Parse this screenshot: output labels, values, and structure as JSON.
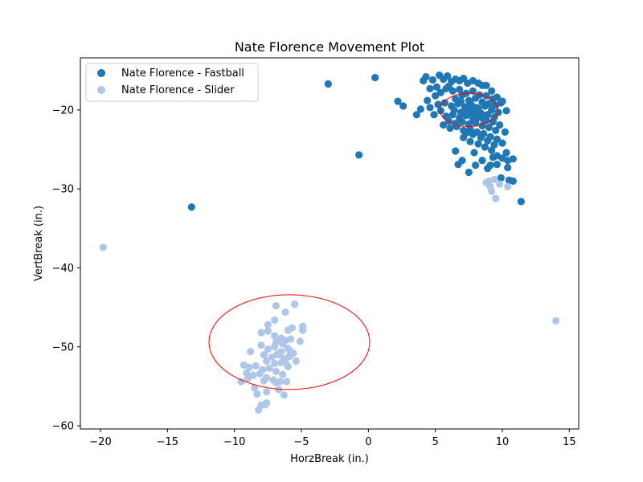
{
  "chart_data": {
    "type": "scatter",
    "title": "Nate Florence Movement Plot",
    "xlabel": "HorzBreak (in.)",
    "ylabel": "VertBreak (in.)",
    "xlim": [
      -21.5,
      15.7
    ],
    "ylim": [
      -60.4,
      -13.4
    ],
    "xticks": [
      -20,
      -15,
      -10,
      -5,
      0,
      5,
      10,
      15
    ],
    "yticks": [
      -60,
      -50,
      -40,
      -30,
      -20
    ],
    "xtick_labels": [
      "−20",
      "−15",
      "−10",
      "−5",
      "0",
      "5",
      "10",
      "15"
    ],
    "ytick_labels": [
      "−60",
      "−50",
      "−40",
      "−30",
      "−20"
    ],
    "grid": false,
    "legend_position": "top-left",
    "series": [
      {
        "name": "Nate Florence - Fastball",
        "color": "#1f77b4",
        "points": [
          [
            -13.2,
            -32.3
          ],
          [
            -3.0,
            -16.7
          ],
          [
            0.5,
            -15.9
          ],
          [
            -0.7,
            -25.7
          ],
          [
            11.4,
            -31.6
          ],
          [
            2.2,
            -18.9
          ],
          [
            2.6,
            -19.5
          ],
          [
            3.6,
            -20.6
          ],
          [
            3.9,
            -19.9
          ],
          [
            4.1,
            -16.3
          ],
          [
            4.3,
            -15.8
          ],
          [
            4.6,
            -19.7
          ],
          [
            4.9,
            -20.6
          ],
          [
            5.3,
            -15.6
          ],
          [
            5.4,
            -20.1
          ],
          [
            5.6,
            -16.1
          ],
          [
            5.9,
            -15.7
          ],
          [
            6.2,
            -16.4
          ],
          [
            6.5,
            -16.1
          ],
          [
            6.8,
            -16.3
          ],
          [
            7.1,
            -16.0
          ],
          [
            7.4,
            -16.6
          ],
          [
            7.8,
            -16.3
          ],
          [
            8.2,
            -16.6
          ],
          [
            8.5,
            -16.9
          ],
          [
            8.8,
            -16.9
          ],
          [
            9.2,
            -17.6
          ],
          [
            9.6,
            -18.4
          ],
          [
            10.0,
            -18.9
          ],
          [
            10.3,
            -20.1
          ],
          [
            5.0,
            -18.2
          ],
          [
            5.4,
            -17.8
          ],
          [
            5.8,
            -17.3
          ],
          [
            6.3,
            -17.6
          ],
          [
            6.8,
            -17.4
          ],
          [
            7.3,
            -17.9
          ],
          [
            7.8,
            -17.6
          ],
          [
            8.3,
            -18.1
          ],
          [
            8.8,
            -18.2
          ],
          [
            9.3,
            -18.6
          ],
          [
            5.2,
            -19.3
          ],
          [
            5.7,
            -19.1
          ],
          [
            6.2,
            -19.5
          ],
          [
            6.7,
            -19.2
          ],
          [
            7.2,
            -19.6
          ],
          [
            7.7,
            -19.4
          ],
          [
            8.2,
            -19.8
          ],
          [
            8.7,
            -19.5
          ],
          [
            9.2,
            -20.0
          ],
          [
            9.7,
            -20.3
          ],
          [
            5.8,
            -20.8
          ],
          [
            6.3,
            -20.6
          ],
          [
            6.8,
            -21.0
          ],
          [
            7.3,
            -20.7
          ],
          [
            7.8,
            -21.1
          ],
          [
            8.3,
            -20.9
          ],
          [
            8.8,
            -21.3
          ],
          [
            9.3,
            -21.5
          ],
          [
            9.8,
            -21.9
          ],
          [
            10.2,
            -22.8
          ],
          [
            5.6,
            -21.9
          ],
          [
            6.1,
            -22.3
          ],
          [
            6.6,
            -22.1
          ],
          [
            7.1,
            -22.6
          ],
          [
            7.6,
            -22.4
          ],
          [
            8.1,
            -22.8
          ],
          [
            8.6,
            -23.0
          ],
          [
            9.1,
            -23.4
          ],
          [
            9.6,
            -23.7
          ],
          [
            10.0,
            -24.2
          ],
          [
            7.1,
            -23.5
          ],
          [
            7.6,
            -24.0
          ],
          [
            8.2,
            -24.3
          ],
          [
            8.7,
            -24.7
          ],
          [
            9.2,
            -25.1
          ],
          [
            9.6,
            -25.8
          ],
          [
            10.0,
            -26.1
          ],
          [
            10.4,
            -26.4
          ],
          [
            10.8,
            -26.2
          ],
          [
            10.3,
            -25.4
          ],
          [
            6.5,
            -25.2
          ],
          [
            7.0,
            -26.4
          ],
          [
            6.7,
            -26.9
          ],
          [
            7.5,
            -27.9
          ],
          [
            8.0,
            -27.0
          ],
          [
            7.9,
            -25.4
          ],
          [
            8.9,
            -27.4
          ],
          [
            9.1,
            -27.0
          ],
          [
            9.6,
            -26.9
          ],
          [
            9.9,
            -28.6
          ],
          [
            10.4,
            -27.3
          ],
          [
            10.5,
            -28.9
          ],
          [
            10.8,
            -29.0
          ],
          [
            8.5,
            -26.4
          ],
          [
            9.3,
            -26.0
          ],
          [
            6.0,
            -17.0
          ],
          [
            6.5,
            -18.6
          ],
          [
            7.0,
            -18.1
          ],
          [
            7.5,
            -18.8
          ],
          [
            8.0,
            -18.5
          ],
          [
            8.5,
            -19.0
          ],
          [
            9.0,
            -19.2
          ],
          [
            9.5,
            -19.4
          ],
          [
            6.4,
            -20.0
          ],
          [
            6.9,
            -20.3
          ],
          [
            7.4,
            -19.9
          ],
          [
            7.9,
            -20.2
          ],
          [
            8.4,
            -20.4
          ],
          [
            8.9,
            -20.6
          ],
          [
            9.4,
            -20.9
          ],
          [
            6.0,
            -21.4
          ],
          [
            6.5,
            -21.7
          ],
          [
            7.0,
            -21.5
          ],
          [
            7.5,
            -21.8
          ],
          [
            8.0,
            -21.6
          ],
          [
            8.5,
            -22.0
          ],
          [
            9.0,
            -22.2
          ],
          [
            9.5,
            -22.6
          ],
          [
            7.3,
            -22.9
          ],
          [
            7.8,
            -23.1
          ],
          [
            8.4,
            -23.5
          ],
          [
            8.9,
            -23.9
          ],
          [
            9.4,
            -24.4
          ],
          [
            6.9,
            -18.9
          ],
          [
            7.6,
            -19.1
          ],
          [
            8.1,
            -19.7
          ],
          [
            7.1,
            -20.2
          ],
          [
            7.6,
            -20.5
          ],
          [
            8.1,
            -21.0
          ],
          [
            8.6,
            -21.2
          ],
          [
            4.6,
            -17.3
          ],
          [
            4.8,
            -16.2
          ],
          [
            5.1,
            -17.1
          ],
          [
            4.4,
            -18.8
          ],
          [
            9.9,
            -19.1
          ]
        ]
      },
      {
        "name": "Nate Florence - Slider",
        "color": "#aec7e8",
        "points": [
          [
            -19.8,
            -37.4
          ],
          [
            14.0,
            -46.7
          ],
          [
            9.0,
            -29.0
          ],
          [
            9.4,
            -28.8
          ],
          [
            9.2,
            -30.3
          ],
          [
            9.5,
            -31.2
          ],
          [
            10.4,
            -29.7
          ],
          [
            8.8,
            -29.2
          ],
          [
            9.8,
            -29.4
          ],
          [
            9.1,
            -29.7
          ],
          [
            -6.9,
            -44.8
          ],
          [
            -5.5,
            -44.6
          ],
          [
            -6.2,
            -45.6
          ],
          [
            -7.0,
            -46.6
          ],
          [
            -7.5,
            -47.2
          ],
          [
            -6.0,
            -47.9
          ],
          [
            -5.7,
            -47.6
          ],
          [
            -4.9,
            -47.4
          ],
          [
            -4.9,
            -47.9
          ],
          [
            -8.0,
            -48.2
          ],
          [
            -7.5,
            -48.0
          ],
          [
            -7.0,
            -48.6
          ],
          [
            -6.5,
            -48.9
          ],
          [
            -6.2,
            -49.2
          ],
          [
            -5.8,
            -49.0
          ],
          [
            -5.1,
            -49.3
          ],
          [
            -8.0,
            -49.8
          ],
          [
            -7.5,
            -50.3
          ],
          [
            -7.0,
            -50.0
          ],
          [
            -6.5,
            -50.6
          ],
          [
            -6.0,
            -50.2
          ],
          [
            -5.6,
            -50.8
          ],
          [
            -8.8,
            -50.6
          ],
          [
            -7.8,
            -51.0
          ],
          [
            -7.2,
            -51.3
          ],
          [
            -6.7,
            -51.0
          ],
          [
            -6.3,
            -51.5
          ],
          [
            -5.9,
            -51.2
          ],
          [
            -5.4,
            -51.8
          ],
          [
            -7.6,
            -51.8
          ],
          [
            -7.0,
            -52.1
          ],
          [
            -6.5,
            -52.0
          ],
          [
            -6.0,
            -52.5
          ],
          [
            -9.3,
            -52.3
          ],
          [
            -8.9,
            -52.6
          ],
          [
            -8.4,
            -52.4
          ],
          [
            -7.9,
            -52.9
          ],
          [
            -7.4,
            -52.7
          ],
          [
            -6.9,
            -53.1
          ],
          [
            -6.4,
            -53.5
          ],
          [
            -9.1,
            -53.3
          ],
          [
            -8.6,
            -53.6
          ],
          [
            -8.1,
            -53.4
          ],
          [
            -7.6,
            -53.9
          ],
          [
            -7.1,
            -54.2
          ],
          [
            -6.6,
            -54.4
          ],
          [
            -9.5,
            -54.4
          ],
          [
            -9.0,
            -54.0
          ],
          [
            -8.5,
            -55.2
          ],
          [
            -7.8,
            -54.3
          ],
          [
            -6.1,
            -54.4
          ],
          [
            -6.9,
            -54.5
          ],
          [
            -8.3,
            -56.0
          ],
          [
            -7.6,
            -55.7
          ],
          [
            -6.7,
            -55.4
          ],
          [
            -6.3,
            -56.1
          ],
          [
            -8.0,
            -57.4
          ],
          [
            -7.6,
            -57.1
          ],
          [
            -7.7,
            -57.3
          ],
          [
            -8.2,
            -58.0
          ],
          [
            -6.9,
            -49.4
          ],
          [
            -6.4,
            -49.6
          ],
          [
            -5.9,
            -50.4
          ],
          [
            -6.8,
            -50.9
          ],
          [
            -6.2,
            -51.9
          ]
        ]
      }
    ],
    "annotations": [
      {
        "type": "ellipse",
        "center": [
          7.5,
          -20.0
        ],
        "width": 4.3,
        "height": 4.2,
        "color": "#ff0000"
      },
      {
        "type": "ellipse",
        "center": [
          -5.9,
          -49.4
        ],
        "width": 12.0,
        "height": 12.0,
        "color": "#ff0000"
      }
    ]
  }
}
